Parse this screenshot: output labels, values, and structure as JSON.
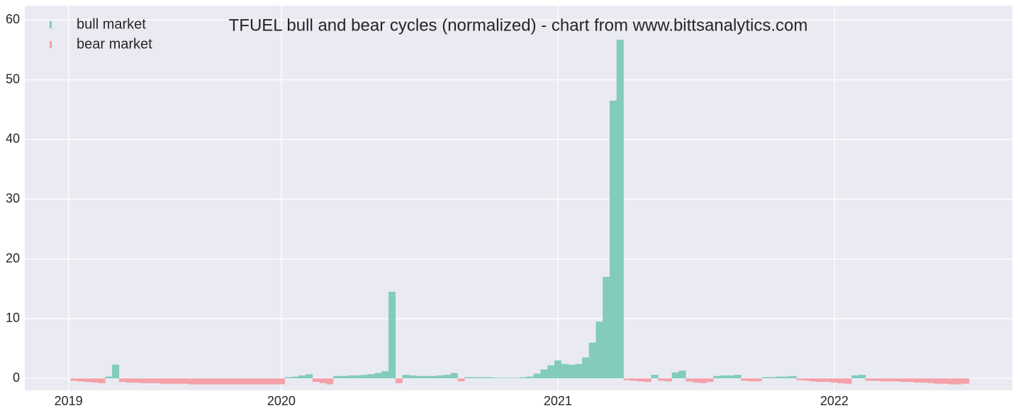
{
  "chart_data": {
    "type": "bar",
    "title": "TFUEL bull and bear cycles (normalized)  - chart from www.bittsanalytics.com",
    "x": [
      2019.25,
      2019.275,
      2019.3,
      2019.325,
      2019.35,
      2019.375,
      2019.4,
      2019.425,
      2019.45,
      2019.475,
      2019.5,
      2019.525,
      2019.55,
      2019.575,
      2019.6,
      2019.625,
      2019.65,
      2019.675,
      2019.7,
      2019.725,
      2019.75,
      2019.775,
      2019.8,
      2019.825,
      2019.85,
      2019.875,
      2019.9,
      2019.925,
      2019.95,
      2019.975,
      2020.0,
      2020.025,
      2020.05,
      2020.075,
      2020.1,
      2020.125,
      2020.15,
      2020.175,
      2020.2,
      2020.225,
      2020.25,
      2020.275,
      2020.3,
      2020.325,
      2020.35,
      2020.375,
      2020.4,
      2020.425,
      2020.45,
      2020.475,
      2020.5,
      2020.525,
      2020.55,
      2020.575,
      2020.6,
      2020.625,
      2020.65,
      2020.675,
      2020.7,
      2020.725,
      2020.75,
      2020.775,
      2020.8,
      2020.825,
      2020.85,
      2020.875,
      2020.9,
      2020.925,
      2020.95,
      2020.975,
      2021.0,
      2021.025,
      2021.05,
      2021.075,
      2021.1,
      2021.125,
      2021.15,
      2021.175,
      2021.2,
      2021.225,
      2021.25,
      2021.275,
      2021.3,
      2021.325,
      2021.35,
      2021.375,
      2021.4,
      2021.425,
      2021.45,
      2021.475,
      2021.5,
      2021.525,
      2021.55,
      2021.575,
      2021.6,
      2021.625,
      2021.65,
      2021.675,
      2021.7,
      2021.725,
      2021.75,
      2021.775,
      2021.8,
      2021.825,
      2021.85,
      2021.875,
      2021.9,
      2021.925,
      2021.95,
      2021.975,
      2022.0,
      2022.025,
      2022.05,
      2022.075,
      2022.1,
      2022.125,
      2022.15,
      2022.175,
      2022.2,
      2022.225,
      2022.25,
      2022.275,
      2022.3,
      2022.325,
      2022.35,
      2022.375,
      2022.4,
      2022.425,
      2022.45,
      2022.475
    ],
    "series": [
      {
        "name": "bull market",
        "color": "#82cbbd",
        "values": [
          null,
          null,
          null,
          null,
          null,
          0.3,
          2.3,
          null,
          null,
          null,
          null,
          null,
          null,
          null,
          null,
          null,
          null,
          null,
          null,
          null,
          null,
          null,
          null,
          null,
          null,
          null,
          null,
          null,
          null,
          null,
          null,
          0.2,
          0.3,
          0.5,
          0.7,
          null,
          null,
          null,
          0.4,
          0.4,
          0.5,
          0.5,
          0.6,
          0.7,
          0.9,
          1.2,
          14.5,
          null,
          0.6,
          0.5,
          0.4,
          0.4,
          0.4,
          0.5,
          0.6,
          0.9,
          null,
          0.2,
          0.2,
          0.2,
          0.2,
          0.1,
          0.1,
          0.1,
          0.1,
          0.2,
          0.3,
          0.8,
          1.5,
          2.2,
          3.0,
          2.4,
          2.3,
          2.4,
          3.5,
          6.0,
          9.5,
          17,
          46.5,
          56.7,
          null,
          null,
          null,
          null,
          0.6,
          null,
          null,
          1.0,
          1.3,
          null,
          null,
          null,
          null,
          0.4,
          0.5,
          0.5,
          0.6,
          null,
          null,
          null,
          0.2,
          0.2,
          0.3,
          0.3,
          0.4,
          null,
          null,
          null,
          null,
          null,
          null,
          null,
          null,
          0.5,
          0.6,
          null,
          null,
          null,
          null,
          null,
          null,
          null,
          null,
          null,
          null,
          null,
          null,
          null,
          null,
          null
        ]
      },
      {
        "name": "bear market",
        "color": "#f4a1a9",
        "values": [
          -0.4,
          -0.5,
          -0.6,
          -0.7,
          -0.8,
          null,
          null,
          -0.6,
          -0.7,
          -0.7,
          -0.8,
          -0.8,
          -0.8,
          -0.9,
          -0.9,
          -0.9,
          -0.9,
          -1.0,
          -1.0,
          -1.0,
          -1.0,
          -1.0,
          -1.0,
          -1.0,
          -1.0,
          -1.0,
          -1.0,
          -1.0,
          -1.0,
          -1.0,
          -1.0,
          null,
          null,
          null,
          null,
          -0.6,
          -0.8,
          -1.0,
          null,
          null,
          null,
          null,
          null,
          null,
          null,
          null,
          null,
          -0.8,
          null,
          null,
          null,
          null,
          null,
          null,
          null,
          null,
          -0.5,
          null,
          null,
          null,
          null,
          null,
          null,
          null,
          null,
          null,
          null,
          null,
          null,
          null,
          null,
          null,
          null,
          null,
          null,
          null,
          null,
          null,
          null,
          null,
          -0.3,
          -0.4,
          -0.5,
          -0.6,
          null,
          -0.4,
          -0.5,
          null,
          null,
          -0.5,
          -0.7,
          -0.8,
          -0.6,
          null,
          null,
          null,
          null,
          -0.4,
          -0.5,
          -0.5,
          null,
          null,
          null,
          null,
          null,
          -0.3,
          -0.4,
          -0.5,
          -0.6,
          -0.6,
          -0.7,
          -0.8,
          -0.9,
          null,
          null,
          -0.4,
          -0.4,
          -0.5,
          -0.5,
          -0.5,
          -0.6,
          -0.6,
          -0.7,
          -0.7,
          -0.8,
          -0.9,
          -0.9,
          -1.0,
          -1.0,
          -0.9
        ]
      }
    ],
    "xlim": [
      2019.072,
      2022.644
    ],
    "xticks": [
      {
        "value": 2019.23,
        "label": "2019"
      },
      2020,
      2021,
      2022
    ],
    "ylim": [
      -2,
      62.4
    ],
    "yticks": [
      0,
      10,
      20,
      30,
      40,
      50,
      60
    ],
    "grid": true,
    "legend": "upper left"
  }
}
